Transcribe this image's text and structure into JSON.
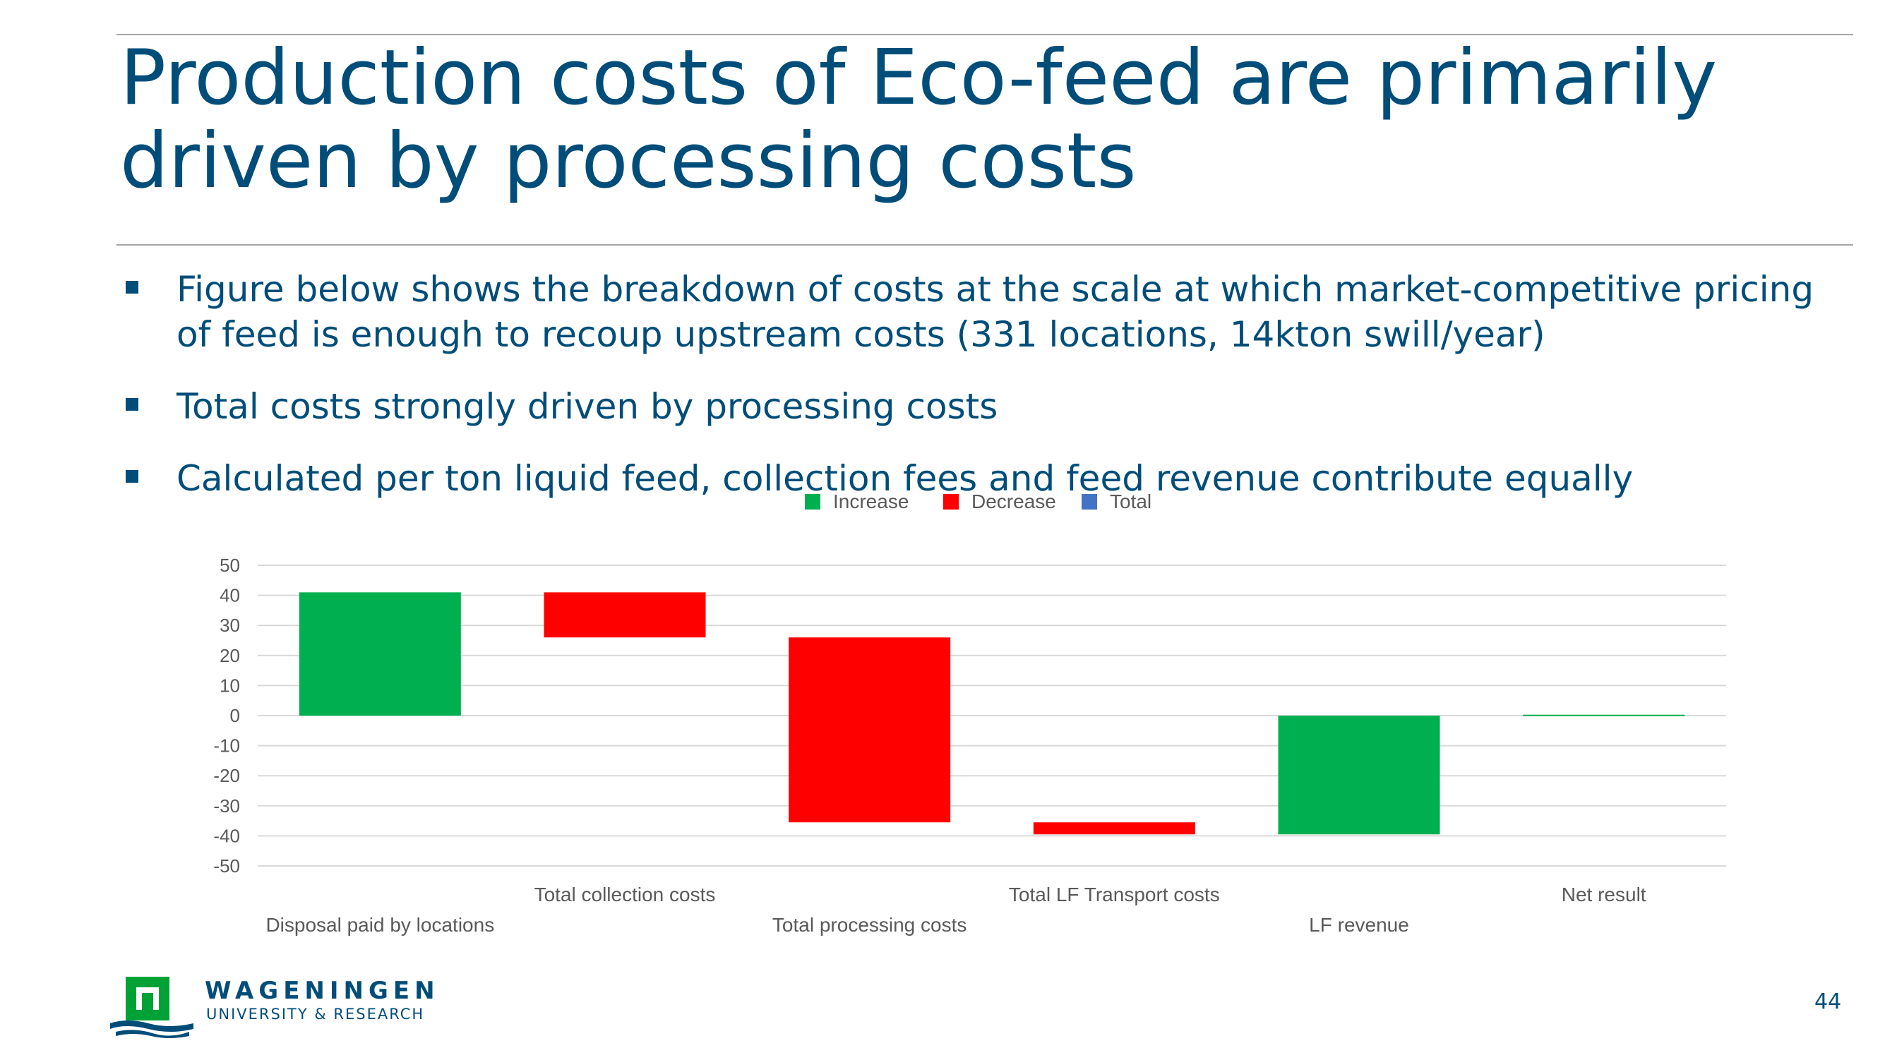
{
  "slide": {
    "title": "Production costs of Eco-feed are primarily driven by processing costs",
    "bullets": [
      "Figure below shows the breakdown of costs at the scale at which market-competitive pricing of feed is enough to recoup upstream costs (331 locations, 14kton swill/year)",
      "Total costs strongly driven by processing costs",
      "Calculated per ton liquid feed, collection fees and feed revenue contribute equally"
    ],
    "page_number": "44"
  },
  "logo": {
    "name": "WAGENINGEN",
    "subtitle": "UNIVERSITY & RESEARCH",
    "colors": {
      "green": "#00a236",
      "blue": "#004d7a"
    }
  },
  "chart_data": {
    "type": "bar",
    "subtype": "waterfall",
    "title": "",
    "xlabel": "",
    "ylabel": "",
    "ylim": [
      -50,
      50
    ],
    "yticks": [
      50,
      40,
      30,
      20,
      10,
      0,
      -10,
      -20,
      -30,
      -40,
      -50
    ],
    "grid": true,
    "legend_position": "top",
    "legend": [
      {
        "label": "Increase",
        "color": "#00b050"
      },
      {
        "label": "Decrease",
        "color": "#ff0000"
      },
      {
        "label": "Total",
        "color": "#4472c4"
      }
    ],
    "categories": [
      "Disposal paid by locations",
      "Total collection costs",
      "Total processing costs",
      "Total LF Transport costs",
      "LF revenue",
      "Net result"
    ],
    "bars": [
      {
        "category": "Disposal paid by locations",
        "start": 0,
        "end": 41,
        "kind": "Increase"
      },
      {
        "category": "Total collection costs",
        "start": 41,
        "end": 26,
        "kind": "Decrease"
      },
      {
        "category": "Total processing costs",
        "start": 26,
        "end": -35.5,
        "kind": "Decrease"
      },
      {
        "category": "Total LF Transport costs",
        "start": -35.5,
        "end": -39.5,
        "kind": "Decrease"
      },
      {
        "category": "LF revenue",
        "start": -39.5,
        "end": 0,
        "kind": "Increase"
      },
      {
        "category": "Net result",
        "start": 0,
        "end": 0.3,
        "kind": "Increase"
      }
    ]
  }
}
